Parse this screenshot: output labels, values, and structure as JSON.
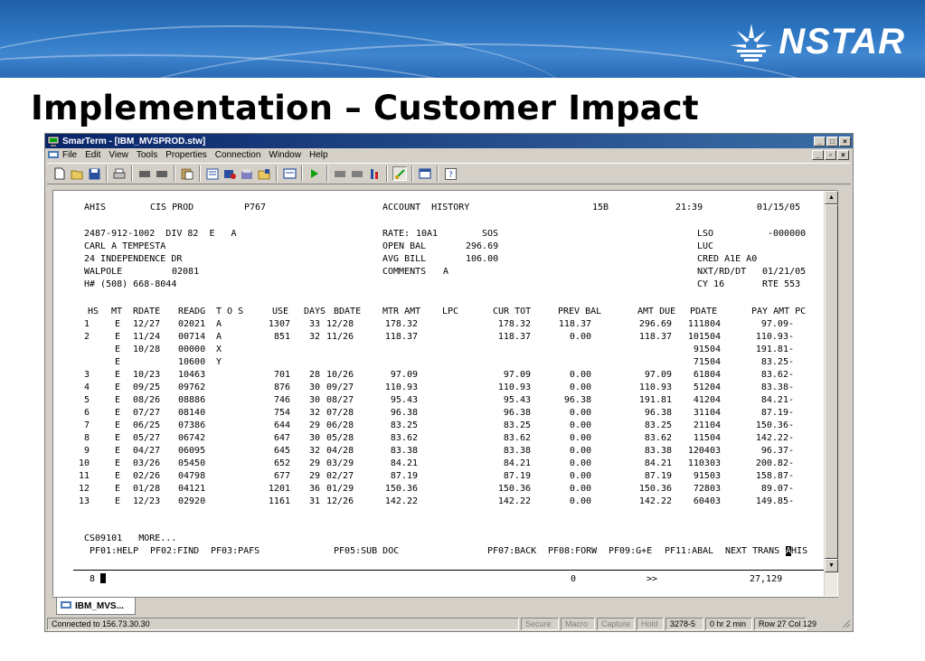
{
  "slide": {
    "title": "Implementation – Customer Impact",
    "logo_text": "NSTAR",
    "colors": {
      "banner": "#2f78c4",
      "title_bar": "#0a246a"
    }
  },
  "window": {
    "title": "SmarTerm - [IBM_MVSPROD.stw]",
    "menu": [
      "File",
      "Edit",
      "View",
      "Tools",
      "Properties",
      "Connection",
      "Window",
      "Help"
    ],
    "toolbar_icons": [
      "new-icon",
      "open-icon",
      "save-icon",
      "print-icon",
      "cut-icon",
      "copy-icon",
      "paste-icon",
      "capture-icon",
      "send-icon",
      "receive-icon",
      "macro-icon",
      "play-icon",
      "record-icon",
      "stop-icon",
      "hotspot-icon",
      "edit-icon",
      "display-icon",
      "help-icon"
    ],
    "session_tab": "IBM_MVS...",
    "status": [
      "Connected to 156.73.30.30",
      "Secure",
      "Macro",
      "Capture",
      "Hold",
      "3278-5",
      "0 hr 2 min",
      "Row 27  Col 129"
    ]
  },
  "screen": {
    "header": {
      "screen_id": "AHIS",
      "system": "CIS PROD",
      "terminal": "P767",
      "title": "ACCOUNT  HISTORY",
      "code": "15B",
      "time": "21:39",
      "date": "01/15/05"
    },
    "account": {
      "number_line": "2487-912-1002  DIV 82  E   A",
      "name": "CARL A TEMPESTA",
      "street": "24 INDEPENDENCE DR",
      "city": "WALPOLE",
      "zip": "02081",
      "phone": "H# (508) 668-8044",
      "rate_label": "RATE:",
      "rate": "10A1",
      "rate_code": "SOS",
      "open_bal_label": "OPEN BAL",
      "open_bal": "296.69",
      "avg_bill_label": "AVG BILL",
      "avg_bill": "106.00",
      "comments_label": "COMMENTS",
      "comments": "A",
      "lso_label": "LSO",
      "lso": "-000000",
      "luc_label": "LUC",
      "cred_label": "CRED A1E A0",
      "nxt_rd_label": "NXT/RD/DT",
      "nxt_rd": "01/21/05",
      "cy_label": "CY 16",
      "rte_label": "RTE 553"
    },
    "columns": [
      "HS",
      "MT",
      "RDATE",
      "READG",
      "T O S",
      "USE",
      "DAYS",
      "BDATE",
      "MTR AMT",
      "LPC",
      "CUR TOT",
      "PREV BAL",
      "AMT DUE",
      "PDATE",
      "PAY AMT PC"
    ],
    "rows": [
      [
        "1",
        "E",
        "12/27",
        "02021",
        "A",
        "1307",
        "33",
        "12/28",
        "178.32",
        "",
        "178.32",
        "118.37",
        "296.69",
        "111804",
        "97.09-"
      ],
      [
        "2",
        "E",
        "11/24",
        "00714",
        "A",
        "851",
        "32",
        "11/26",
        "118.37",
        "",
        "118.37",
        "0.00",
        "118.37",
        "101504",
        "110.93-"
      ],
      [
        "",
        "E",
        "10/28",
        "00000",
        "X",
        "",
        "",
        "",
        "",
        "",
        "",
        "",
        "",
        "91504",
        "191.81-"
      ],
      [
        "",
        "E",
        "",
        "10600",
        "Y",
        "",
        "",
        "",
        "",
        "",
        "",
        "",
        "",
        "71504",
        "83.25-"
      ],
      [
        "3",
        "E",
        "10/23",
        "10463",
        "",
        "701",
        "28",
        "10/26",
        "97.09",
        "",
        "97.09",
        "0.00",
        "97.09",
        "61804",
        "83.62-"
      ],
      [
        "4",
        "E",
        "09/25",
        "09762",
        "",
        "876",
        "30",
        "09/27",
        "110.93",
        "",
        "110.93",
        "0.00",
        "110.93",
        "51204",
        "83.38-"
      ],
      [
        "5",
        "E",
        "08/26",
        "08886",
        "",
        "746",
        "30",
        "08/27",
        "95.43",
        "",
        "95.43",
        "96.38",
        "191.81",
        "41204",
        "84.21-"
      ],
      [
        "6",
        "E",
        "07/27",
        "08140",
        "",
        "754",
        "32",
        "07/28",
        "96.38",
        "",
        "96.38",
        "0.00",
        "96.38",
        "31104",
        "87.19-"
      ],
      [
        "7",
        "E",
        "06/25",
        "07386",
        "",
        "644",
        "29",
        "06/28",
        "83.25",
        "",
        "83.25",
        "0.00",
        "83.25",
        "21104",
        "150.36-"
      ],
      [
        "8",
        "E",
        "05/27",
        "06742",
        "",
        "647",
        "30",
        "05/28",
        "83.62",
        "",
        "83.62",
        "0.00",
        "83.62",
        "11504",
        "142.22-"
      ],
      [
        "9",
        "E",
        "04/27",
        "06095",
        "",
        "645",
        "32",
        "04/28",
        "83.38",
        "",
        "83.38",
        "0.00",
        "83.38",
        "120403",
        "96.37-"
      ],
      [
        "10",
        "E",
        "03/26",
        "05450",
        "",
        "652",
        "29",
        "03/29",
        "84.21",
        "",
        "84.21",
        "0.00",
        "84.21",
        "110303",
        "200.82-"
      ],
      [
        "11",
        "E",
        "02/26",
        "04798",
        "",
        "677",
        "29",
        "02/27",
        "87.19",
        "",
        "87.19",
        "0.00",
        "87.19",
        "91503",
        "158.87-"
      ],
      [
        "12",
        "E",
        "01/28",
        "04121",
        "",
        "1201",
        "36",
        "01/29",
        "150.36",
        "",
        "150.36",
        "0.00",
        "150.36",
        "72803",
        "89.07-"
      ],
      [
        "13",
        "E",
        "12/23",
        "02920",
        "",
        "1161",
        "31",
        "12/26",
        "142.22",
        "",
        "142.22",
        "0.00",
        "142.22",
        "60403",
        "149.85-"
      ]
    ],
    "message": "CS09101   MORE...",
    "pf_keys": [
      "PF01:HELP",
      "PF02:FIND",
      "PF03:PAFS",
      "PF05:SUB DOC",
      "PF07:BACK",
      "PF08:FORW",
      "PF09:G+E",
      "PF11:ABAL"
    ],
    "next_trans_label": "NEXT TRANS",
    "next_trans_cursor": "A",
    "next_trans_rest": "HIS",
    "cmd_prefix": "8",
    "cmd_count": "0",
    "cmd_arrows": ">>",
    "cmd_total": "27,129"
  }
}
